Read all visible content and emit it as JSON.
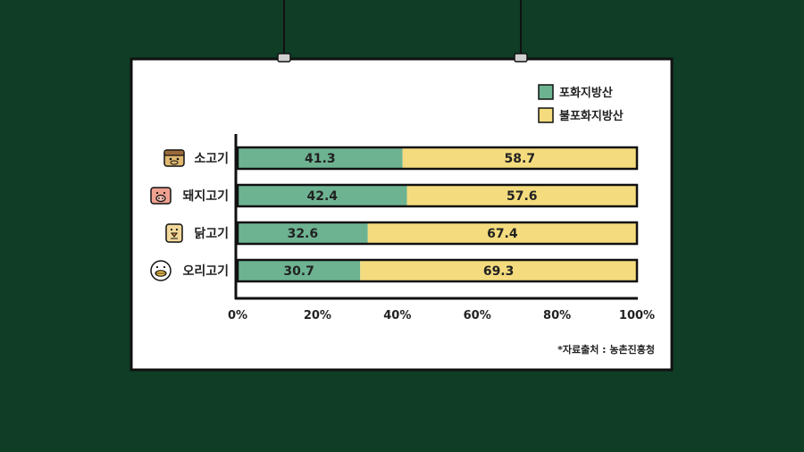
{
  "chart_data": {
    "type": "bar",
    "orientation": "horizontal",
    "stacked": true,
    "categories": [
      "소고기",
      "돼지고기",
      "닭고기",
      "오리고기"
    ],
    "category_icons": [
      "cow-icon",
      "pig-icon",
      "chicken-icon",
      "duck-icon"
    ],
    "series": [
      {
        "name": "포화지방산",
        "values": [
          41.3,
          42.4,
          32.6,
          30.7
        ],
        "color": "#6db392"
      },
      {
        "name": "불포화지방산",
        "values": [
          58.7,
          57.6,
          67.4,
          69.3
        ],
        "color": "#f4dc7e"
      }
    ],
    "x_ticks": [
      "0%",
      "20%",
      "40%",
      "60%",
      "80%",
      "100%"
    ],
    "xlim": [
      0,
      100
    ],
    "legend_position": "top-right",
    "grid": false
  },
  "source": "*자료출처 : 농촌진흥청"
}
